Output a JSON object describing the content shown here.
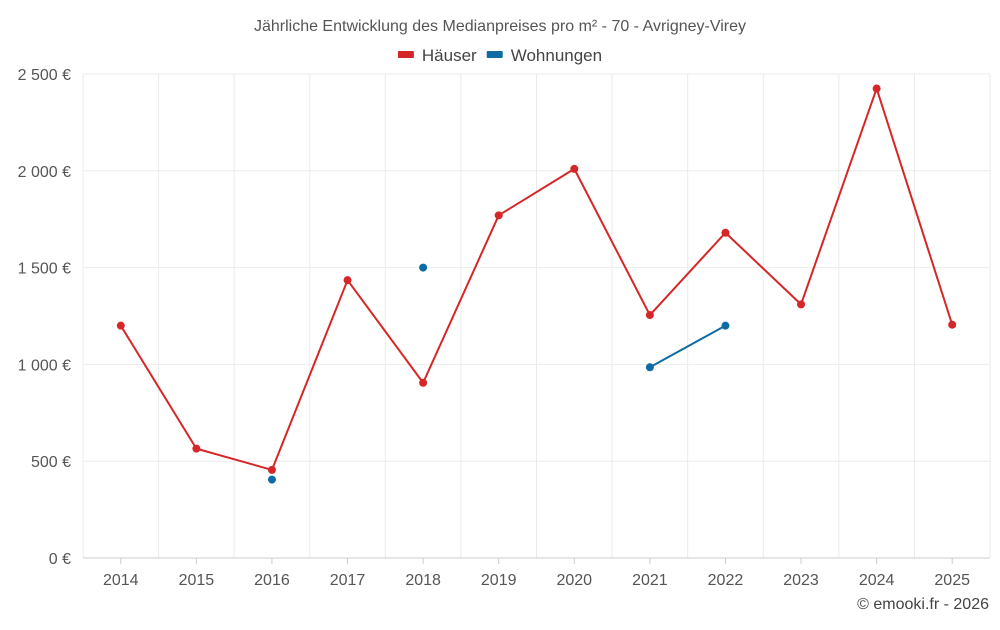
{
  "chart_data": {
    "type": "line",
    "title": "Jährliche Entwicklung des Medianpreises pro m² - 70 - Avrigney-Virey",
    "categories": [
      "2014",
      "2015",
      "2016",
      "2017",
      "2018",
      "2019",
      "2020",
      "2021",
      "2022",
      "2023",
      "2024",
      "2025"
    ],
    "series": [
      {
        "name": "Häuser",
        "color": "#d62728",
        "values": [
          1200,
          565,
          455,
          1435,
          905,
          1770,
          2010,
          1255,
          1680,
          1310,
          2425,
          1205
        ]
      },
      {
        "name": "Wohnungen",
        "color": "#0f6ba3",
        "values": [
          null,
          null,
          405,
          null,
          1500,
          null,
          null,
          985,
          1200,
          null,
          null,
          null
        ]
      }
    ],
    "ylim": [
      0,
      2500
    ],
    "yticks": [
      0,
      500,
      1000,
      1500,
      2000,
      2500
    ],
    "ytick_labels": [
      "0 €",
      "500 €",
      "1 000 €",
      "1 500 €",
      "2 000 €",
      "2 500 €"
    ],
    "grid": true,
    "legend_position": "top-center"
  },
  "credit": "© emooki.fr - 2026"
}
